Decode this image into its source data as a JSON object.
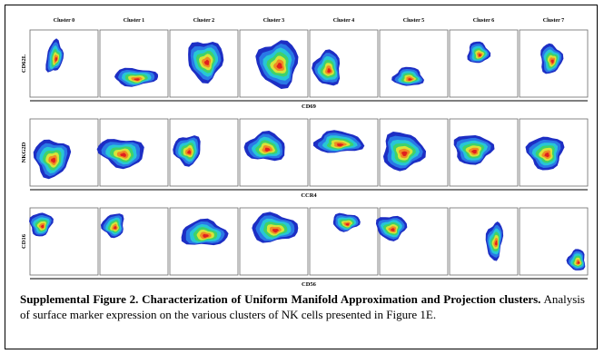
{
  "figure": {
    "cluster_labels": [
      "Cluster 0",
      "Cluster 1",
      "Cluster 2",
      "Cluster 3",
      "Cluster 4",
      "Cluster 5",
      "Cluster 6",
      "Cluster 7"
    ],
    "rows": [
      {
        "y_label": "CD62L",
        "x_label": "CD69"
      },
      {
        "y_label": "NKG2D",
        "x_label": "CCR4"
      },
      {
        "y_label": "CD16",
        "x_label": "CD56"
      }
    ],
    "density_colors": [
      "#1d2ec4",
      "#2a78e6",
      "#27c6d6",
      "#3fd26a",
      "#d7e43a",
      "#f08a24",
      "#e0201e"
    ]
  },
  "caption": {
    "title": "Supplemental Figure 2. Characterization of Uniform Manifold Approximation and Projection clusters.",
    "body": " Analysis of surface marker expression on the various clusters of NK cells presented in Figure 1E."
  }
}
